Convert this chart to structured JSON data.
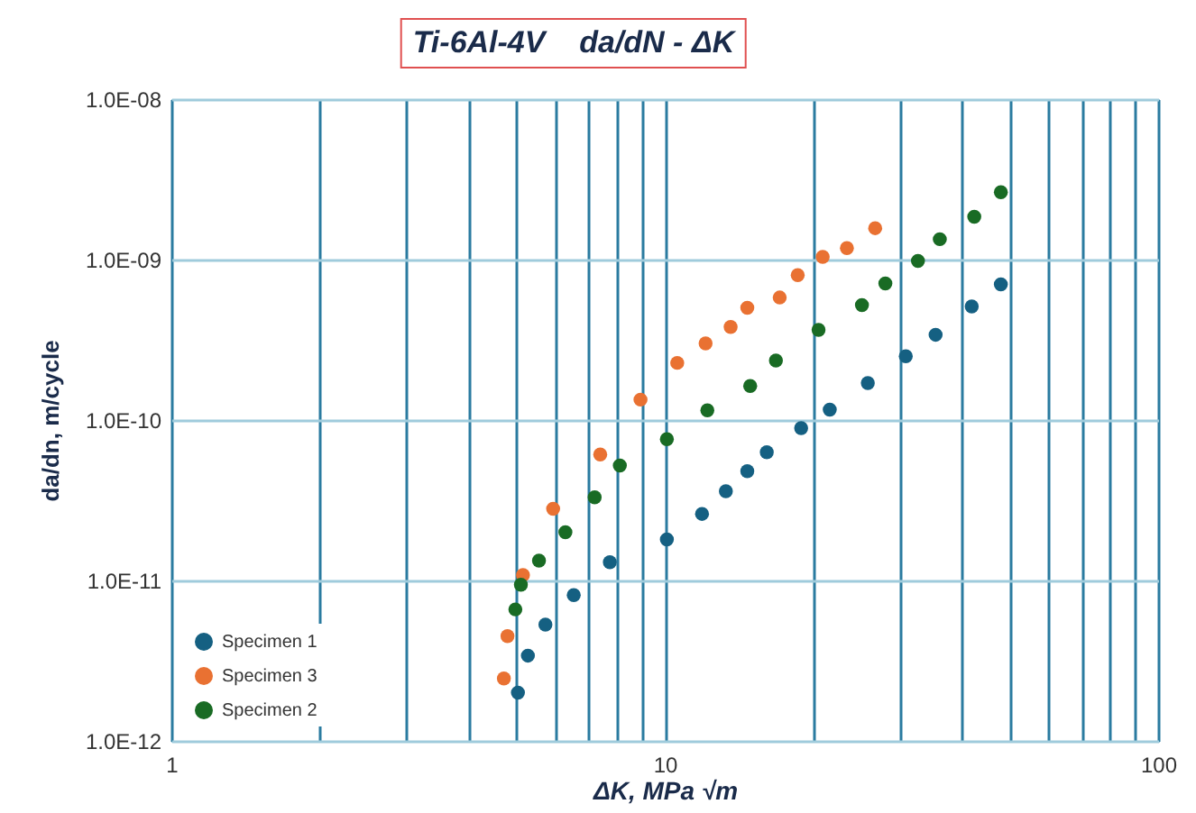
{
  "chart_data": {
    "type": "scatter",
    "title": "Ti-6Al-4V    da/dN - ΔK",
    "xlabel": "ΔK, MPa √m",
    "ylabel": "da/dn, m/cycle",
    "log": "xy",
    "grid": true,
    "legend": "bottom left",
    "marker": "circle",
    "xlim": [
      1,
      100
    ],
    "xticks": [
      1,
      {
        "value": 2,
        "label": null
      },
      {
        "value": 3,
        "label": null
      },
      {
        "value": 4,
        "label": null
      },
      {
        "value": 5,
        "label": null
      },
      {
        "value": 6,
        "label": null
      },
      {
        "value": 7,
        "label": null
      },
      {
        "value": 8,
        "label": null
      },
      {
        "value": 9,
        "label": null
      },
      10,
      {
        "value": 20,
        "label": null
      },
      {
        "value": 30,
        "label": null
      },
      {
        "value": 40,
        "label": null
      },
      {
        "value": 50,
        "label": null
      },
      {
        "value": 60,
        "label": null
      },
      {
        "value": 70,
        "label": null
      },
      {
        "value": 80,
        "label": null
      },
      {
        "value": 90,
        "label": null
      },
      100
    ],
    "ylim": [
      1e-12,
      1e-08
    ],
    "yticks": [
      {
        "value": 1e-12,
        "label": "1.0E-12"
      },
      {
        "value": 1e-11,
        "label": "1.0E-11"
      },
      {
        "value": 1e-10,
        "label": "1.0E-10"
      },
      {
        "value": 1e-09,
        "label": "1.0E-09"
      },
      {
        "value": 1e-08,
        "label": "1.0E-08"
      }
    ],
    "series": [
      {
        "name": "Specimen 1",
        "color": "#156082",
        "x": [
          5.04,
          5.28,
          5.73,
          6.54,
          7.74,
          10.1,
          11.9,
          13.3,
          14.7,
          16.1,
          18.9,
          21.6,
          25.8,
          30.8,
          35.4,
          41.9,
          48.0
        ],
        "values": [
          2e-12,
          3.4e-12,
          5.3e-12,
          8.1e-12,
          1.3e-11,
          1.8e-11,
          2.6e-11,
          3.6e-11,
          4.8e-11,
          6.3e-11,
          8.9e-11,
          1.16e-10,
          1.7e-10,
          2.5e-10,
          3.4e-10,
          5.1e-10,
          7e-10
        ]
      },
      {
        "name": "Specimen 3",
        "color": "#e97132",
        "x": [
          4.72,
          4.8,
          5.16,
          5.94,
          7.4,
          8.93,
          10.6,
          12.1,
          13.6,
          14.7,
          17.1,
          18.6,
          20.9,
          23.4,
          26.7
        ],
        "values": [
          2.45e-12,
          4.5e-12,
          1.08e-11,
          2.8e-11,
          6.1e-11,
          1.34e-10,
          2.27e-10,
          3e-10,
          3.8e-10,
          5e-10,
          5.8e-10,
          8e-10,
          1.04e-09,
          1.18e-09,
          1.57e-09
        ]
      },
      {
        "name": "Specimen 2",
        "color": "#196b24",
        "x": [
          4.98,
          5.11,
          5.56,
          6.29,
          7.21,
          8.11,
          10.1,
          12.2,
          14.9,
          16.8,
          20.5,
          25.1,
          28.0,
          32.6,
          36.1,
          42.4,
          48.0
        ],
        "values": [
          6.6e-12,
          9.4e-12,
          1.33e-11,
          2e-11,
          3.3e-11,
          5.2e-11,
          7.6e-11,
          1.15e-10,
          1.63e-10,
          2.35e-10,
          3.65e-10,
          5.2e-10,
          7.1e-10,
          9.8e-10,
          1.34e-09,
          1.85e-09,
          2.63e-09
        ]
      }
    ]
  }
}
